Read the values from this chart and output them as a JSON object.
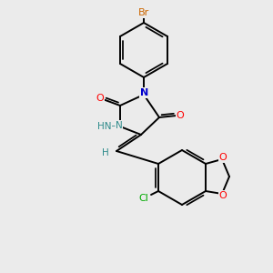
{
  "background_color": "#ebebeb",
  "figsize": [
    3.0,
    3.0
  ],
  "dpi": 100,
  "colors": {
    "bond": "#000000",
    "Br": "#cc6600",
    "O": "#ff0000",
    "N": "#0000cc",
    "NH": "#2e8b8b",
    "H": "#2e8b8b",
    "Cl": "#00aa00"
  }
}
